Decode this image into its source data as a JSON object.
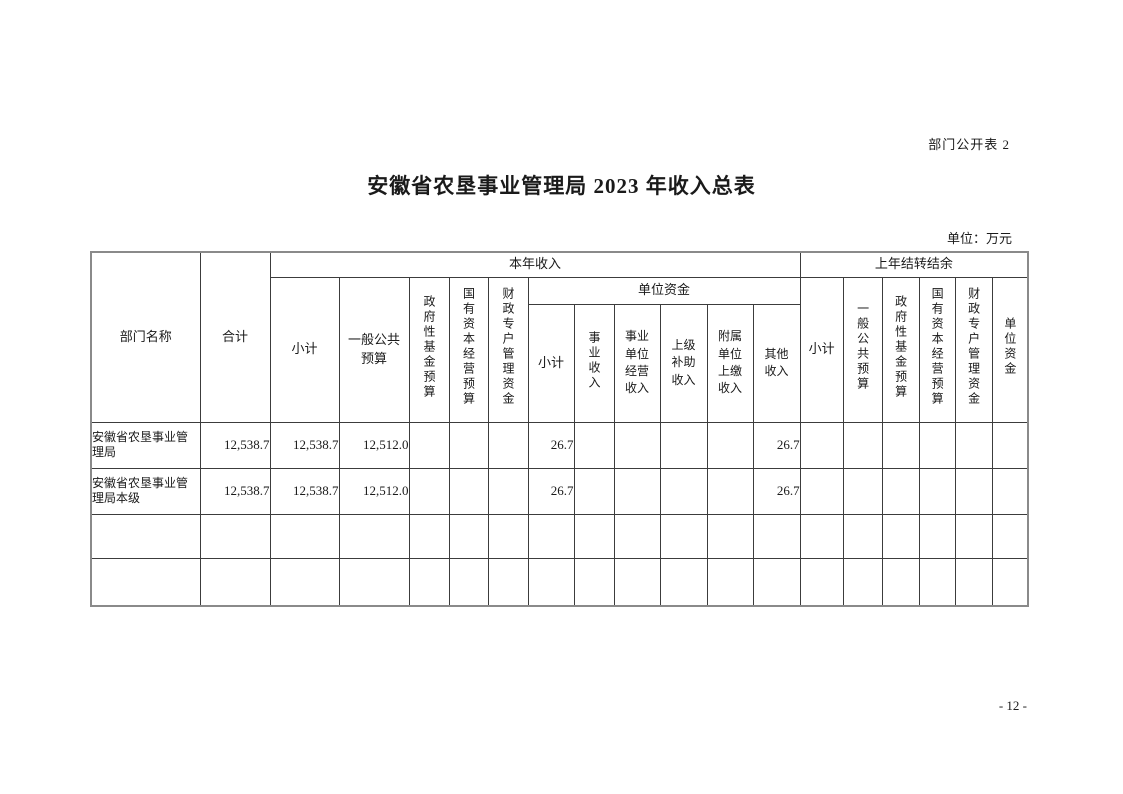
{
  "page": {
    "doc_label": "部门公开表 2",
    "title": "安徽省农垦事业管理局 2023 年收入总表",
    "unit_note": "单位：万元",
    "page_number": "- 12 -"
  },
  "table": {
    "headers": {
      "dept": "部门名称",
      "total": "合计",
      "current_year": "本年收入",
      "carryover": "上年结转结余",
      "cy": {
        "subtotal": "小计",
        "general_budget": "一般公共预算",
        "gov_fund": "政府性基金预算",
        "state_capital": "国有资本经营预算",
        "fiscal_account": "财政专户管理资金",
        "unit_funds": "单位资金",
        "uf_subtotal": "小计",
        "business_income": "事业收入",
        "operating_income": "事业单位经营收入",
        "superior_subsidy": "上级补助收入",
        "subordinate_remit": "附属单位上缴收入",
        "other_income": "其他收入"
      },
      "co": {
        "subtotal": "小计",
        "general_budget": "一般公共预算",
        "gov_fund": "政府性基金预算",
        "state_capital": "国有资本经营预算",
        "fiscal_account": "财政专户管理资金",
        "unit_funds": "单位资金"
      }
    },
    "rows": [
      {
        "name": "安徽省农垦事业管理局",
        "cells": [
          "12,538.7",
          "12,538.7",
          "12,512.0",
          "",
          "",
          "",
          "26.7",
          "",
          "",
          "",
          "",
          "26.7",
          "",
          "",
          "",
          "",
          "",
          ""
        ]
      },
      {
        "name": "安徽省农垦事业管理局本级",
        "cells": [
          "12,538.7",
          "12,538.7",
          "12,512.0",
          "",
          "",
          "",
          "26.7",
          "",
          "",
          "",
          "",
          "26.7",
          "",
          "",
          "",
          "",
          "",
          ""
        ]
      },
      {
        "name": "",
        "cells": [
          "",
          "",
          "",
          "",
          "",
          "",
          "",
          "",
          "",
          "",
          "",
          "",
          "",
          "",
          "",
          "",
          "",
          ""
        ]
      },
      {
        "name": "",
        "cells": [
          "",
          "",
          "",
          "",
          "",
          "",
          "",
          "",
          "",
          "",
          "",
          "",
          "",
          "",
          "",
          "",
          "",
          ""
        ]
      }
    ]
  }
}
